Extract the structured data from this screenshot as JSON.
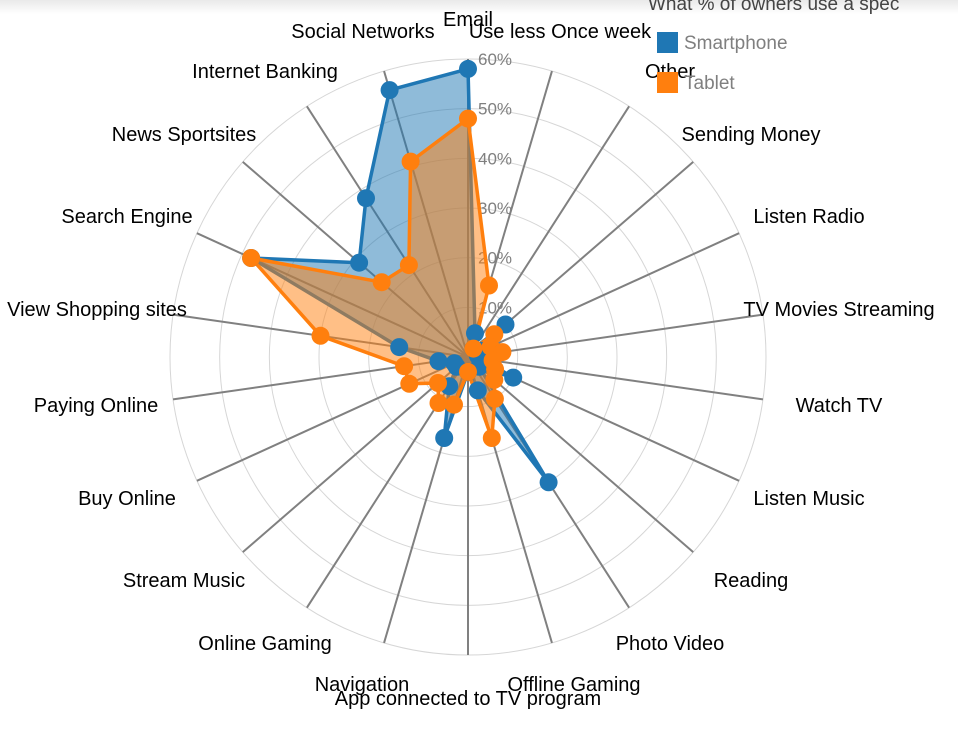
{
  "chart_data": {
    "type": "radar",
    "title": "What % of owners use a spec",
    "axes": [
      "Email",
      "Use less Once week",
      "Other",
      "Sending Money",
      "Listen Radio",
      "TV Movies Streaming",
      "Watch TV",
      "Listen Music",
      "Reading",
      "Photo Video",
      "Offline Gaming",
      "App connected to TV program",
      "Navigation",
      "Online Gaming",
      "Stream Music",
      "Buy Online",
      "Paying Online",
      "View Shopping sites",
      "Search Engine",
      "News Sportsites",
      "Internet Banking",
      "Social Networks"
    ],
    "ticks": [
      "10%",
      "20%",
      "30%",
      "40%",
      "50%",
      "60%"
    ],
    "max": 0.6,
    "grid": true,
    "legend_position": "top-right",
    "series": [
      {
        "name": "Smartphone",
        "color": "#1f77b4",
        "values": [
          0.58,
          0.05,
          0.02,
          0.1,
          0.03,
          0.02,
          0.03,
          0.1,
          0.03,
          0.3,
          0.07,
          0.03,
          0.17,
          0.07,
          0.03,
          0.03,
          0.06,
          0.14,
          0.48,
          0.29,
          0.38,
          0.56
        ]
      },
      {
        "name": "Tablet",
        "color": "#ff7f0e",
        "values": [
          0.48,
          0.15,
          0.02,
          0.07,
          0.05,
          0.07,
          0.05,
          0.06,
          0.07,
          0.1,
          0.17,
          0.03,
          0.1,
          0.11,
          0.08,
          0.13,
          0.13,
          0.3,
          0.48,
          0.23,
          0.22,
          0.41
        ]
      }
    ]
  }
}
